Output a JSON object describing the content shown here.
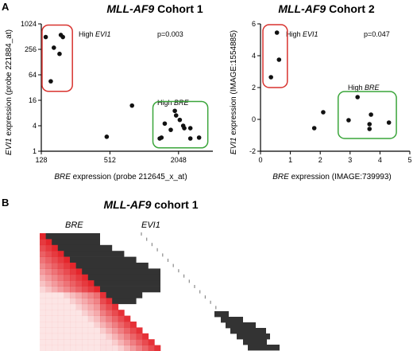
{
  "panel_labels": {
    "a": "A",
    "b": "B"
  },
  "colors": {
    "points": "#111111",
    "high_evi1_box": "#d8322e",
    "high_bre_box": "#3aa53a",
    "heat_red": "#e4262c",
    "heat_dark": "#333333",
    "tick_grey": "#8a8a8a"
  },
  "chart_data": [
    {
      "type": "scatter",
      "title_gene": "MLL-AF9",
      "title_rest": " Cohort 1",
      "xlabel_gene": "BRE",
      "xlabel_rest": " expression (probe 212645_x_at)",
      "ylabel_gene": "EVI1",
      "ylabel_rest": " expression (probe 221884_at)",
      "x_scale": "log2",
      "y_scale": "log2",
      "xlim": [
        128,
        4096
      ],
      "ylim": [
        1,
        1024
      ],
      "x_ticks": [
        128,
        512,
        2048
      ],
      "y_ticks": [
        1,
        4,
        16,
        64,
        256,
        1024
      ],
      "pvalue": "p=0.003",
      "high_evi1_label": "High ",
      "high_evi1_gene": "EVI1",
      "high_bre_label": "High ",
      "high_bre_gene": "BRE",
      "points": [
        {
          "x": 140,
          "y": 500
        },
        {
          "x": 190,
          "y": 560
        },
        {
          "x": 198,
          "y": 500
        },
        {
          "x": 165,
          "y": 280
        },
        {
          "x": 185,
          "y": 200
        },
        {
          "x": 155,
          "y": 45
        },
        {
          "x": 480,
          "y": 2.2
        },
        {
          "x": 800,
          "y": 12
        },
        {
          "x": 1900,
          "y": 9
        },
        {
          "x": 1950,
          "y": 7
        },
        {
          "x": 2100,
          "y": 5.5
        },
        {
          "x": 1550,
          "y": 4.5
        },
        {
          "x": 2250,
          "y": 4
        },
        {
          "x": 1750,
          "y": 3.2
        },
        {
          "x": 2300,
          "y": 3.5
        },
        {
          "x": 2600,
          "y": 3.5
        },
        {
          "x": 1450,
          "y": 2.1
        },
        {
          "x": 1400,
          "y": 2.0
        },
        {
          "x": 2600,
          "y": 2.0
        },
        {
          "x": 3100,
          "y": 2.1
        }
      ]
    },
    {
      "type": "scatter",
      "title_gene": "MLL-AF9",
      "title_rest": " Cohort 2",
      "xlabel_gene": "BRE",
      "xlabel_rest": " expression (IMAGE:739993)",
      "ylabel_gene": "EVI1",
      "ylabel_rest": " expression (IMAGE:1554885)",
      "xlim": [
        0,
        5
      ],
      "ylim": [
        -2,
        6
      ],
      "x_ticks": [
        0,
        1,
        2,
        3,
        4,
        5
      ],
      "y_ticks": [
        -2,
        0,
        2,
        4,
        6
      ],
      "pvalue": "p=0.047",
      "high_evi1_label": "High ",
      "high_evi1_gene": "EVI1",
      "high_bre_label": "High ",
      "high_bre_gene": "BRE",
      "points": [
        {
          "x": 0.55,
          "y": 5.45
        },
        {
          "x": 0.62,
          "y": 3.75
        },
        {
          "x": 0.35,
          "y": 2.65
        },
        {
          "x": 1.8,
          "y": -0.55
        },
        {
          "x": 2.1,
          "y": 0.45
        },
        {
          "x": 3.25,
          "y": 1.4
        },
        {
          "x": 2.95,
          "y": -0.05
        },
        {
          "x": 3.7,
          "y": 0.3
        },
        {
          "x": 3.65,
          "y": -0.3
        },
        {
          "x": 3.65,
          "y": -0.6
        },
        {
          "x": 4.3,
          "y": -0.2
        }
      ]
    },
    {
      "type": "heatmap",
      "title_gene": "MLL-AF9",
      "title_rest": " cohort 1",
      "col_label_1": "BRE",
      "col_label_2": "EVI1",
      "rows": 20
    }
  ]
}
